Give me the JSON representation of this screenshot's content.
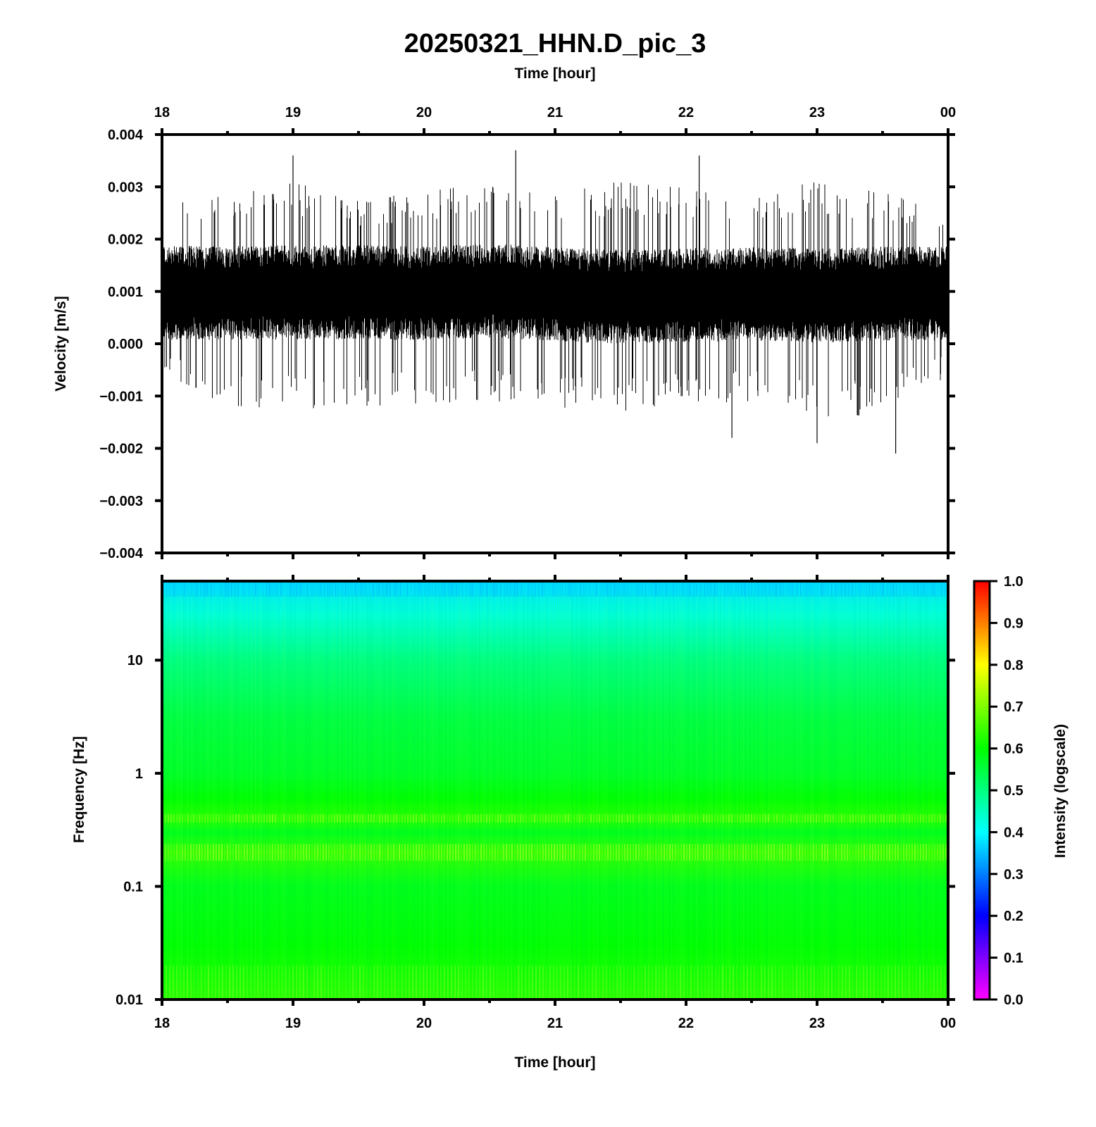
{
  "chart_data": [
    {
      "type": "line",
      "title": "20250321_HHN.D_pic_3",
      "xlabel": "Time [hour]",
      "ylabel": "Velocity [m/s]",
      "x_ticks": [
        "18",
        "19",
        "20",
        "21",
        "22",
        "23",
        "00"
      ],
      "xlim": [
        18,
        24
      ],
      "y_ticks": [
        "0.004",
        "0.003",
        "0.002",
        "0.001",
        "0.000",
        "−0.001",
        "−0.002",
        "−0.003",
        "−0.004"
      ],
      "ylim": [
        -0.004,
        0.004
      ],
      "series": [
        {
          "color": "#000000",
          "x": [
            18.0,
            18.5,
            19.0,
            19.5,
            20.0,
            20.5,
            21.0,
            21.5,
            22.0,
            22.5,
            23.0,
            23.5,
            24.0
          ],
          "mean": [
            0.00098,
            0.00097,
            0.00098,
            0.00099,
            0.00096,
            0.00102,
            0.00094,
            0.0009,
            0.00093,
            0.00095,
            0.00092,
            0.00096,
            0.00096
          ],
          "upper_envelope": [
            0.0027,
            0.0029,
            0.0031,
            0.0028,
            0.0029,
            0.0031,
            0.0029,
            0.0031,
            0.003,
            0.0029,
            0.0031,
            0.0029,
            0.0027
          ],
          "lower_envelope": [
            -0.0007,
            -0.0012,
            -0.0013,
            -0.0012,
            -0.0012,
            -0.0011,
            -0.0013,
            -0.0013,
            -0.0012,
            -0.0011,
            -0.0015,
            -0.0013,
            -0.0007
          ],
          "spike_max": [
            {
              "x": 19.0,
              "y": 0.0036
            },
            {
              "x": 20.7,
              "y": 0.0037
            },
            {
              "x": 22.1,
              "y": 0.0036
            }
          ],
          "spike_min": [
            {
              "x": 23.6,
              "y": -0.0021
            },
            {
              "x": 22.35,
              "y": -0.0018
            },
            {
              "x": 23.0,
              "y": -0.0019
            }
          ]
        }
      ]
    },
    {
      "type": "heatmap",
      "xlabel": "Time [hour]",
      "ylabel": "Frequency [Hz]",
      "x_ticks": [
        "18",
        "19",
        "20",
        "21",
        "22",
        "23",
        "00"
      ],
      "xlim": [
        18,
        24
      ],
      "y_scale": "log",
      "y_ticks": [
        "10",
        "1",
        "0.1",
        "0.01"
      ],
      "ylim": [
        0.01,
        50
      ],
      "colorbar": {
        "label": "Intensity (logscale)",
        "ticks": [
          "1.0",
          "0.9",
          "0.8",
          "0.7",
          "0.6",
          "0.5",
          "0.4",
          "0.3",
          "0.2",
          "0.1",
          "0.0"
        ],
        "range": [
          0,
          1
        ],
        "colormap": [
          "#ff00ff",
          "#0000ff",
          "#00ffff",
          "#00ff00",
          "#ffff00",
          "#ff0000"
        ]
      },
      "frequency_profile": [
        {
          "f": 50,
          "intensity": 0.38
        },
        {
          "f": 25,
          "intensity": 0.43
        },
        {
          "f": 10,
          "intensity": 0.5
        },
        {
          "f": 3,
          "intensity": 0.55
        },
        {
          "f": 1,
          "intensity": 0.57
        },
        {
          "f": 0.6,
          "intensity": 0.6
        },
        {
          "f": 0.4,
          "intensity": 0.63
        },
        {
          "f": 0.3,
          "intensity": 0.58
        },
        {
          "f": 0.2,
          "intensity": 0.64
        },
        {
          "f": 0.1,
          "intensity": 0.58
        },
        {
          "f": 0.03,
          "intensity": 0.6
        },
        {
          "f": 0.01,
          "intensity": 0.63
        }
      ]
    }
  ]
}
